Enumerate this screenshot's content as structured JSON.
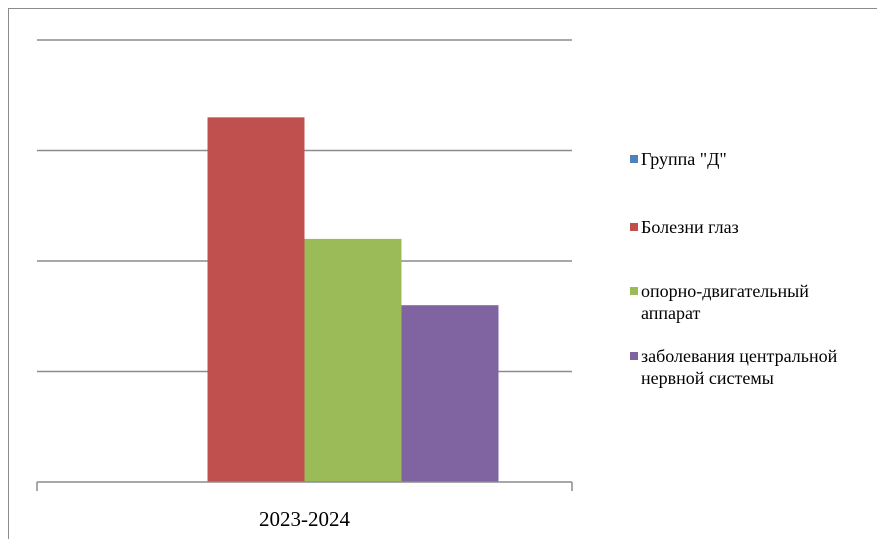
{
  "chart_data": {
    "type": "bar",
    "title": "",
    "xlabel": "",
    "ylabel": "",
    "categories": [
      "2023-2024"
    ],
    "ylim": [
      0,
      4
    ],
    "gridlines": [
      0,
      1,
      2,
      3,
      4
    ],
    "grid": true,
    "y_tick_labels_shown": false,
    "legend_position": "right",
    "series": [
      {
        "name": "Группа \"Д\"",
        "values": [
          0
        ],
        "color": "#4f81bd"
      },
      {
        "name": "Болезни глаз",
        "values": [
          3.3
        ],
        "color": "#c0504d"
      },
      {
        "name": "опорно-двигательный аппарат",
        "values": [
          2.2
        ],
        "color": "#9bbb59"
      },
      {
        "name": "заболевания центральной нервной системы",
        "values": [
          1.6
        ],
        "color": "#8064a2"
      }
    ]
  },
  "legend": {
    "items": [
      {
        "label": "Группа \"Д\"",
        "color": "#4f81bd"
      },
      {
        "label": "Болезни глаз",
        "color": "#c0504d"
      },
      {
        "label": "опорно-двигательный\nаппарат",
        "color": "#9bbb59"
      },
      {
        "label": "заболевания центральной\nнервной системы",
        "color": "#8064a2"
      }
    ]
  },
  "colors": {
    "gridline": "#8c8c8c",
    "axis": "#8c8c8c"
  }
}
